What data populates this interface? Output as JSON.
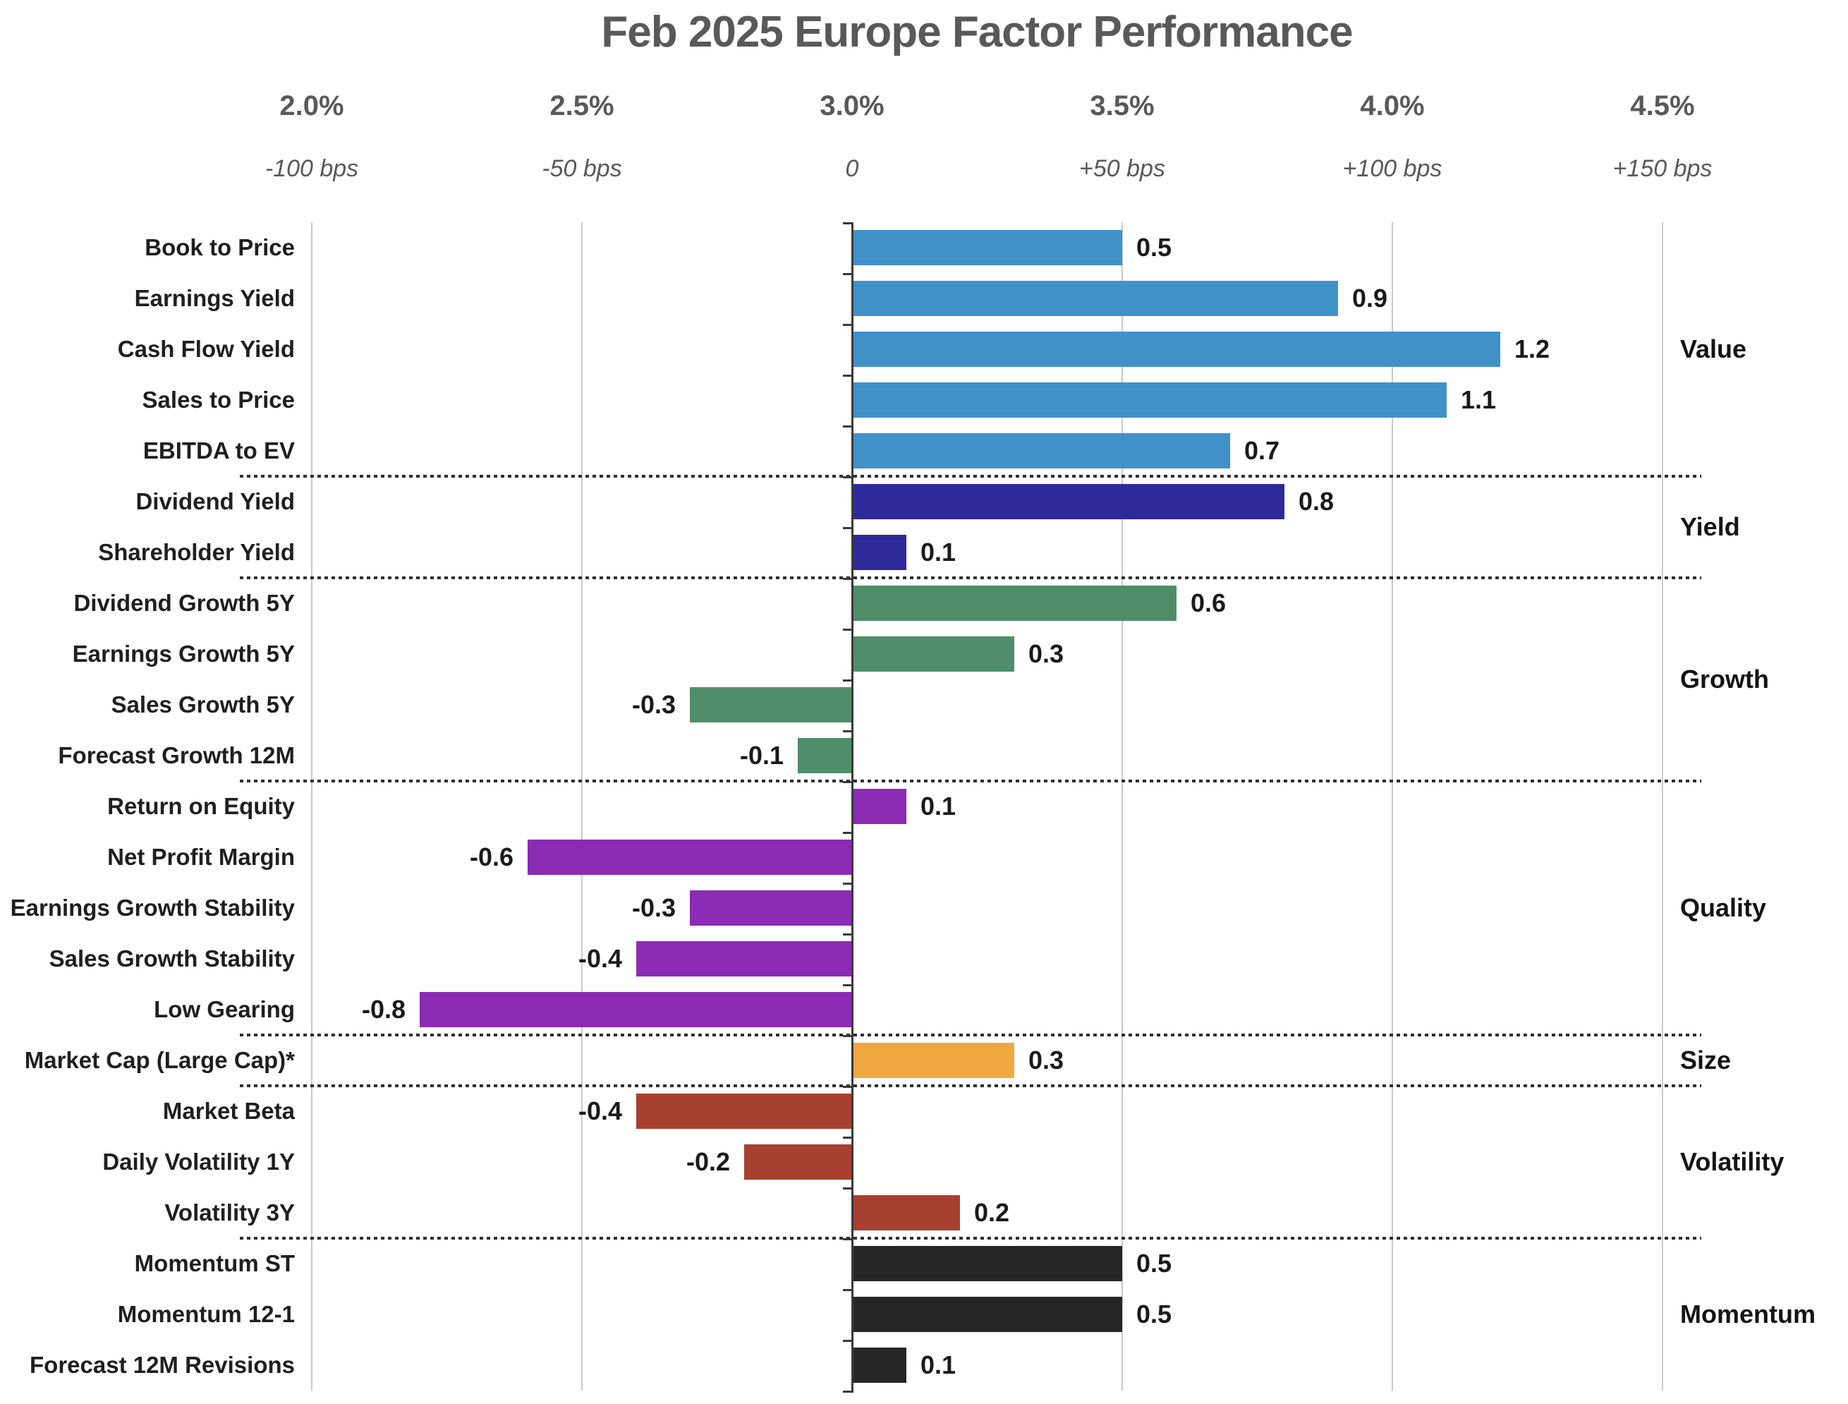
{
  "title": "Feb 2025 Europe Factor Performance",
  "axis": {
    "ticks": [
      {
        "percent": "2.0%",
        "bps": "-100 bps"
      },
      {
        "percent": "2.5%",
        "bps": "-50 bps"
      },
      {
        "percent": "3.0%",
        "bps": "0"
      },
      {
        "percent": "3.5%",
        "bps": "+50 bps"
      },
      {
        "percent": "4.0%",
        "bps": "+100 bps"
      },
      {
        "percent": "4.5%",
        "bps": "+150 bps"
      }
    ]
  },
  "chart_data": {
    "type": "bar",
    "orientation": "horizontal",
    "title": "Feb 2025 Europe Factor Performance",
    "x_axis": {
      "top_scale_percent": [
        "2.0%",
        "2.5%",
        "3.0%",
        "3.5%",
        "4.0%",
        "4.5%"
      ],
      "bottom_scale_bps": [
        "-100 bps",
        "-50 bps",
        "0",
        "+50 bps",
        "+100 bps",
        "+150 bps"
      ],
      "zero_at_percent": "3.0%",
      "range_bps": [
        -100,
        150
      ],
      "gridlines": true,
      "legend": "none; groups labeled at right edge"
    },
    "groups": [
      {
        "name": "Value",
        "color": "#4191c9",
        "factors": [
          {
            "label": "Book to Price",
            "value": 0.5
          },
          {
            "label": "Earnings Yield",
            "value": 0.9
          },
          {
            "label": "Cash Flow Yield",
            "value": 1.2
          },
          {
            "label": "Sales to Price",
            "value": 1.1
          },
          {
            "label": "EBITDA to EV",
            "value": 0.7
          }
        ]
      },
      {
        "name": "Yield",
        "color": "#2f2a99",
        "factors": [
          {
            "label": "Dividend Yield",
            "value": 0.8
          },
          {
            "label": "Shareholder Yield",
            "value": 0.1
          }
        ]
      },
      {
        "name": "Growth",
        "color": "#4f8e69",
        "factors": [
          {
            "label": "Dividend Growth 5Y",
            "value": 0.6
          },
          {
            "label": "Earnings Growth 5Y",
            "value": 0.3
          },
          {
            "label": "Sales Growth 5Y",
            "value": -0.3
          },
          {
            "label": "Forecast Growth 12M",
            "value": -0.1
          }
        ]
      },
      {
        "name": "Quality",
        "color": "#8b2bb4",
        "factors": [
          {
            "label": "Return on Equity",
            "value": 0.1
          },
          {
            "label": "Net Profit Margin",
            "value": -0.6
          },
          {
            "label": "Earnings Growth Stability",
            "value": -0.3
          },
          {
            "label": "Sales Growth Stability",
            "value": -0.4
          },
          {
            "label": "Low Gearing",
            "value": -0.8
          }
        ]
      },
      {
        "name": "Size",
        "color": "#f0a73e",
        "factors": [
          {
            "label": "Market Cap (Large Cap)*",
            "value": 0.3
          }
        ]
      },
      {
        "name": "Volatility",
        "color": "#a8402f",
        "factors": [
          {
            "label": "Market Beta",
            "value": -0.4
          },
          {
            "label": "Daily Volatility 1Y",
            "value": -0.2
          },
          {
            "label": "Volatility 3Y",
            "value": 0.2
          }
        ]
      },
      {
        "name": "Momentum",
        "color": "#262626",
        "factors": [
          {
            "label": "Momentum ST",
            "value": 0.5
          },
          {
            "label": "Momentum 12-1",
            "value": 0.5
          },
          {
            "label": "Forecast 12M Revisions",
            "value": 0.1
          }
        ]
      }
    ]
  }
}
